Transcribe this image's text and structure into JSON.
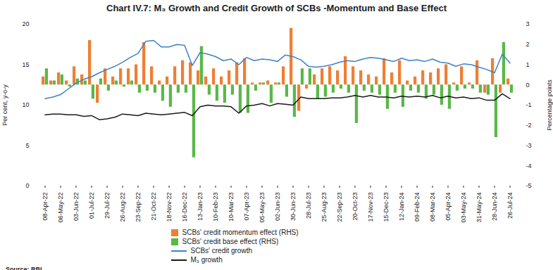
{
  "chart_data": {
    "type": "bar",
    "title": "Chart IV.7: M₃ Growth and Credit Growth of SCBs -Momentum and Base Effect",
    "source": "Source: RBI.",
    "y_label": "Per cent, y-o-y",
    "y2_label": "Percentage points",
    "categories": [
      "08-Apr-22",
      null,
      "06-May-22",
      null,
      "03-Jun-22",
      null,
      "01-Jul-22",
      null,
      "29-Jul-22",
      null,
      "26-Aug-22",
      null,
      "23-Sep-22",
      null,
      "21-Oct-22",
      null,
      "18-Nov-22",
      null,
      "16-Dec-22",
      null,
      "13-Jan-23",
      null,
      "10-Feb-23",
      null,
      "10-Mar-23",
      null,
      "07-Apr-23",
      null,
      "05-May-23",
      null,
      "02-Jun-23",
      null,
      "30-Jun-23",
      null,
      "28-Jul-23",
      null,
      "25-Aug-23",
      null,
      "22-Sep-23",
      null,
      "20-Oct-23",
      null,
      "17-Nov-23",
      null,
      "15-Dec-23",
      null,
      "12-Jan-24",
      null,
      "09-Feb-24",
      null,
      "08-Mar-24",
      null,
      "05-Apr-24",
      null,
      "03-May-24",
      null,
      "31-May-24",
      null,
      "28-Jun-24",
      null,
      "26-Jul-24"
    ],
    "ylim": [
      0,
      20
    ],
    "yticks": [
      0,
      5,
      10,
      15,
      20
    ],
    "y2lim": [
      -5,
      3
    ],
    "y2ticks": [
      -5,
      -4,
      -3,
      -2,
      -1,
      0,
      1,
      2,
      3
    ],
    "grid": false,
    "series": [
      {
        "name": "SCBs' credit momentum effect (RHS)",
        "type": "bar",
        "axis": "y2",
        "color": "#ef7f33",
        "values": [
          0.4,
          0.2,
          0.6,
          0.2,
          0.9,
          0.5,
          2.2,
          -0.9,
          0.8,
          0.4,
          0.8,
          0.8,
          1.0,
          2.1,
          0.9,
          0.2,
          0.4,
          0.9,
          1.2,
          1.1,
          0.7,
          0.4,
          0.8,
          0.4,
          0.7,
          1.1,
          1.3,
          0.1,
          0.1,
          0.2,
          0.1,
          0.9,
          2.8,
          -1.3,
          -0.2,
          0.5,
          0.8,
          0.9,
          0.7,
          1.4,
          0.9,
          0.7,
          0.5,
          0.4,
          1.3,
          0.6,
          1.2,
          0.2,
          0.4,
          0.7,
          0.6,
          0.8,
          1.0,
          0.1,
          0.9,
          0.1,
          1.2,
          -0.4,
          1.3,
          -0.4,
          0.3
        ]
      },
      {
        "name": "SCBs' credit base effect (RHS)",
        "type": "bar",
        "axis": "y2",
        "color": "#5ab847",
        "values": [
          0.8,
          0.2,
          0.5,
          -0.1,
          0.3,
          0.2,
          -0.7,
          0.3,
          -0.3,
          0.2,
          -0.1,
          0.2,
          -0.4,
          -0.3,
          -0.4,
          -0.8,
          -1.1,
          -0.4,
          -0.4,
          -3.6,
          1.9,
          -0.5,
          -0.8,
          -0.9,
          -0.5,
          -1.4,
          -1.4,
          -0.3,
          0.1,
          -0.9,
          0.1,
          -0.6,
          -1.6,
          0.8,
          0.8,
          -0.7,
          -0.6,
          -0.4,
          -0.2,
          -0.4,
          -1.9,
          -0.3,
          -0.4,
          -0.5,
          -1.2,
          -0.4,
          -1.1,
          -0.3,
          -0.4,
          -0.7,
          -0.5,
          -1.0,
          -1.2,
          -0.3,
          -0.2,
          -0.2,
          -0.4,
          -0.5,
          -2.6,
          2.1,
          -0.4
        ]
      },
      {
        "name": "SCBs' credit growth",
        "type": "line",
        "axis": "y",
        "color": "#3d82c8",
        "values": [
          10.8,
          11.0,
          11.3,
          12.0,
          12.7,
          13.2,
          13.5,
          14.0,
          14.4,
          14.8,
          15.3,
          15.9,
          16.4,
          17.9,
          18.0,
          17.2,
          17.2,
          17.5,
          17.4,
          14.9,
          16.5,
          16.3,
          16.0,
          15.5,
          15.7,
          15.0,
          15.9,
          15.5,
          15.7,
          15.6,
          15.4,
          16.2,
          16.0,
          15.6,
          14.8,
          14.7,
          14.8,
          15.0,
          15.3,
          15.5,
          15.4,
          15.7,
          15.9,
          15.8,
          15.6,
          15.4,
          15.8,
          15.5,
          15.6,
          15.4,
          15.7,
          15.3,
          15.2,
          14.8,
          15.1,
          15.0,
          14.7,
          14.4,
          14.0,
          16.3,
          15.2
        ]
      },
      {
        "name": "M₃ growth",
        "type": "line",
        "axis": "y",
        "color": "#1a1a1a",
        "values": [
          8.8,
          8.9,
          8.9,
          8.8,
          8.8,
          8.6,
          8.7,
          8.2,
          8.3,
          8.5,
          8.9,
          8.8,
          8.7,
          9.0,
          8.9,
          8.8,
          8.9,
          9.0,
          9.1,
          8.7,
          9.8,
          10.0,
          9.9,
          9.9,
          9.8,
          9.0,
          9.9,
          10.0,
          10.2,
          9.9,
          10.2,
          10.1,
          10.0,
          11.0,
          10.8,
          10.8,
          10.8,
          10.9,
          10.9,
          11.0,
          11.2,
          11.0,
          11.2,
          11.0,
          11.0,
          10.9,
          11.1,
          11.0,
          11.1,
          11.0,
          11.2,
          10.9,
          11.1,
          10.9,
          11.0,
          10.8,
          10.9,
          10.6,
          10.6,
          11.4,
          10.8
        ]
      }
    ]
  }
}
